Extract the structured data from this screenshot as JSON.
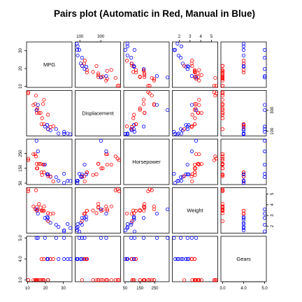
{
  "chart_data": {
    "type": "scatter",
    "subtype": "scatterplot-matrix",
    "title": "Pairs plot (Automatic in Red, Manual in Blue)",
    "variables": [
      "MPG",
      "Displacement",
      "Horsepower",
      "Weight",
      "Gears"
    ],
    "tick_labels": {
      "MPG": [
        "10",
        "20",
        "30"
      ],
      "Displacement": [
        "100",
        "300"
      ],
      "Horsepower": [
        "50",
        "150",
        "250"
      ],
      "Weight": [
        "2",
        "3",
        "4",
        "5"
      ],
      "Gears": [
        "3.0",
        "4.0",
        "5.0"
      ]
    },
    "ticks": {
      "MPG": [
        10,
        20,
        30
      ],
      "Displacement": [
        100,
        300
      ],
      "Horsepower": [
        50,
        150,
        250
      ],
      "Weight": [
        2,
        3,
        4,
        5
      ],
      "Gears": [
        3,
        4,
        5
      ]
    },
    "ranges": {
      "MPG": [
        10.4,
        33.9
      ],
      "Displacement": [
        71.1,
        472
      ],
      "Horsepower": [
        52,
        335
      ],
      "Weight": [
        1.513,
        5.424
      ],
      "Gears": [
        3,
        5
      ]
    },
    "groups": [
      {
        "name": "Automatic",
        "color": "#ff0000"
      },
      {
        "name": "Manual",
        "color": "#0000ff"
      }
    ],
    "points": [
      [
        21.0,
        160,
        110,
        2.62,
        4,
        1
      ],
      [
        21.0,
        160,
        110,
        2.875,
        4,
        1
      ],
      [
        22.8,
        108,
        93,
        2.32,
        4,
        1
      ],
      [
        21.4,
        258,
        110,
        3.215,
        3,
        0
      ],
      [
        18.7,
        360,
        175,
        3.44,
        3,
        0
      ],
      [
        18.1,
        225,
        105,
        3.46,
        3,
        0
      ],
      [
        14.3,
        360,
        245,
        3.57,
        3,
        0
      ],
      [
        24.4,
        146.7,
        62,
        3.19,
        4,
        0
      ],
      [
        22.8,
        140.8,
        95,
        3.15,
        4,
        0
      ],
      [
        19.2,
        167.6,
        123,
        3.44,
        4,
        0
      ],
      [
        17.8,
        167.6,
        123,
        3.44,
        4,
        0
      ],
      [
        16.4,
        275.8,
        180,
        4.07,
        3,
        0
      ],
      [
        17.3,
        275.8,
        180,
        3.73,
        3,
        0
      ],
      [
        15.2,
        275.8,
        180,
        3.78,
        3,
        0
      ],
      [
        10.4,
        472,
        205,
        5.25,
        3,
        0
      ],
      [
        10.4,
        460,
        215,
        5.424,
        3,
        0
      ],
      [
        14.7,
        440,
        230,
        5.345,
        3,
        0
      ],
      [
        32.4,
        78.7,
        66,
        2.2,
        4,
        1
      ],
      [
        30.4,
        75.7,
        52,
        1.615,
        4,
        1
      ],
      [
        33.9,
        71.1,
        65,
        1.835,
        4,
        1
      ],
      [
        21.5,
        120.1,
        97,
        2.465,
        3,
        0
      ],
      [
        15.5,
        318,
        150,
        3.52,
        3,
        0
      ],
      [
        15.2,
        304,
        150,
        3.435,
        3,
        0
      ],
      [
        13.3,
        350,
        245,
        3.84,
        3,
        0
      ],
      [
        19.2,
        400,
        175,
        3.845,
        3,
        0
      ],
      [
        27.3,
        79,
        66,
        1.935,
        4,
        1
      ],
      [
        26.0,
        120.3,
        91,
        2.14,
        5,
        1
      ],
      [
        30.4,
        95.1,
        113,
        1.513,
        5,
        1
      ],
      [
        15.8,
        351,
        264,
        3.17,
        5,
        1
      ],
      [
        19.7,
        145,
        175,
        2.77,
        5,
        1
      ],
      [
        15.0,
        301,
        335,
        3.57,
        5,
        1
      ],
      [
        21.4,
        121,
        109,
        2.78,
        4,
        1
      ]
    ],
    "point_fields": [
      "MPG",
      "Displacement",
      "Horsepower",
      "Weight",
      "Gears",
      "am"
    ],
    "legend": "none",
    "grid": false
  }
}
